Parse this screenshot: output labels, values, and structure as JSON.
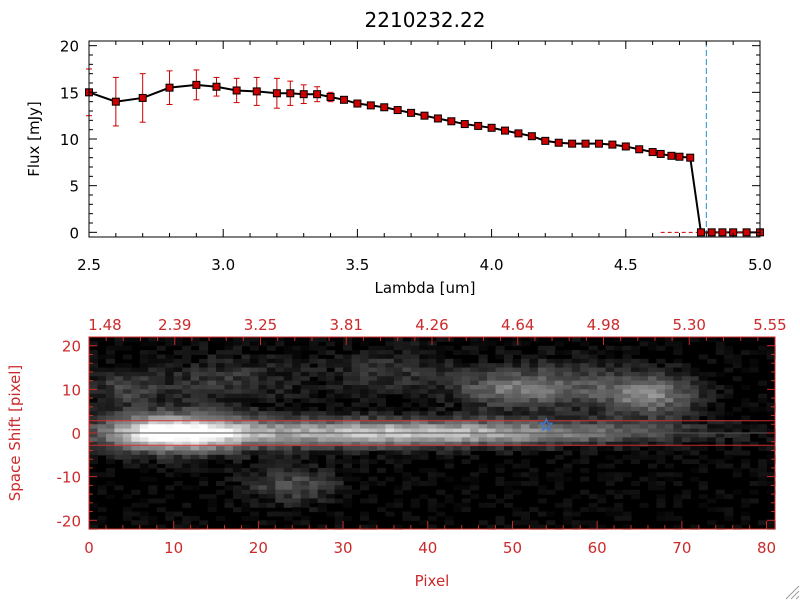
{
  "colors": {
    "axis": "#000000",
    "data_line": "#000000",
    "marker": "#cc0000",
    "error_bar": "#cc0000",
    "dashed_line": "#1f8fd0",
    "red_frame": "#cc2a2a",
    "star": "#3a7bd5"
  },
  "chart_data": [
    {
      "type": "line",
      "title": "2210232.22",
      "xlabel": "Lambda [um]",
      "ylabel": "Flux [mJy]",
      "xlim": [
        2.5,
        5.0
      ],
      "ylim": [
        -0.5,
        20.5
      ],
      "xticks": [
        "2.5",
        "3.0",
        "3.5",
        "4.0",
        "4.5",
        "5.0"
      ],
      "xtick_values": [
        2.5,
        3.0,
        3.5,
        4.0,
        4.5,
        5.0
      ],
      "yticks": [
        "0",
        "5",
        "10",
        "15",
        "20"
      ],
      "ytick_values": [
        0,
        5,
        10,
        15,
        20
      ],
      "vline_x": 4.8,
      "grid": false,
      "series": [
        {
          "x": [
            2.5,
            2.6,
            2.7,
            2.8,
            2.9,
            2.975,
            3.05,
            3.125,
            3.2,
            3.25,
            3.3,
            3.35,
            3.4,
            3.45,
            3.5,
            3.55,
            3.6,
            3.65,
            3.7,
            3.75,
            3.8,
            3.85,
            3.9,
            3.95,
            4.0,
            4.05,
            4.1,
            4.15,
            4.2,
            4.25,
            4.3,
            4.35,
            4.4,
            4.45,
            4.5,
            4.55,
            4.6,
            4.63,
            4.67,
            4.7,
            4.74,
            4.78,
            4.82,
            4.86,
            4.9,
            4.95,
            5.0
          ],
          "y": [
            15.0,
            14.0,
            14.4,
            15.5,
            15.8,
            15.6,
            15.2,
            15.1,
            14.9,
            14.9,
            14.8,
            14.8,
            14.5,
            14.2,
            13.8,
            13.6,
            13.4,
            13.1,
            12.8,
            12.5,
            12.2,
            11.9,
            11.6,
            11.4,
            11.2,
            10.9,
            10.6,
            10.3,
            9.8,
            9.6,
            9.5,
            9.5,
            9.5,
            9.4,
            9.2,
            8.9,
            8.6,
            8.4,
            8.2,
            8.1,
            8.0,
            0.0,
            0.0,
            0.0,
            0.0,
            0.0,
            0.0
          ],
          "yerr": [
            2.5,
            2.6,
            2.6,
            1.8,
            1.6,
            1.0,
            1.3,
            1.5,
            1.6,
            1.3,
            1.0,
            0.8,
            0.5,
            0.3,
            0.3,
            0.3,
            0.3,
            0.3,
            0.3,
            0.3,
            0.3,
            0.3,
            0.3,
            0.3,
            0.3,
            0.3,
            0.3,
            0.3,
            0.3,
            0.3,
            0.3,
            0.3,
            0.3,
            0.3,
            0.3,
            0.3,
            0.3,
            0.3,
            0.3,
            0.3,
            0.3,
            0.0,
            0.0,
            0.0,
            0.0,
            0.0,
            0.0
          ]
        }
      ]
    },
    {
      "type": "heatmap",
      "xlabel": "Pixel",
      "ylabel": "Space Shift [pixel]",
      "xlim": [
        0,
        81
      ],
      "ylim": [
        -22,
        22
      ],
      "xticks": [
        "0",
        "10",
        "20",
        "30",
        "40",
        "50",
        "60",
        "70",
        "80"
      ],
      "xtick_values": [
        0,
        10,
        20,
        30,
        40,
        50,
        60,
        70,
        80
      ],
      "yticks": [
        "-20",
        "-10",
        "0",
        "10",
        "20"
      ],
      "ytick_values": [
        -20,
        -10,
        0,
        10,
        20
      ],
      "top_ticks": [
        "1.48",
        "2.39",
        "3.25",
        "3.81",
        "4.26",
        "4.64",
        "4.98",
        "5.30",
        "5.55"
      ],
      "hlines_y": [
        2.8,
        -2.8
      ],
      "center_line_y": 0,
      "star_marker": {
        "x": 54,
        "y": 1.8
      },
      "blobs": [
        {
          "x": 10,
          "y": 0,
          "sx": 6,
          "sy": 3,
          "amp": 1.0
        },
        {
          "x": 30,
          "y": 0,
          "sx": 14,
          "sy": 2.4,
          "amp": 0.55
        },
        {
          "x": 50,
          "y": 0,
          "sx": 16,
          "sy": 2.0,
          "amp": 0.45
        },
        {
          "x": 66,
          "y": 9,
          "sx": 4,
          "sy": 3.5,
          "amp": 0.55
        },
        {
          "x": 49,
          "y": 10,
          "sx": 4,
          "sy": 3,
          "amp": 0.4
        },
        {
          "x": 56,
          "y": 11,
          "sx": 4,
          "sy": 4,
          "amp": 0.3
        },
        {
          "x": 24,
          "y": -12,
          "sx": 4,
          "sy": 3,
          "amp": 0.3
        },
        {
          "x": 4,
          "y": 10,
          "sx": 3,
          "sy": 3,
          "amp": 0.25
        },
        {
          "x": 36,
          "y": 14,
          "sx": 6,
          "sy": 4,
          "amp": 0.2
        },
        {
          "x": 16,
          "y": 12,
          "sx": 6,
          "sy": 4,
          "amp": 0.22
        }
      ]
    }
  ]
}
